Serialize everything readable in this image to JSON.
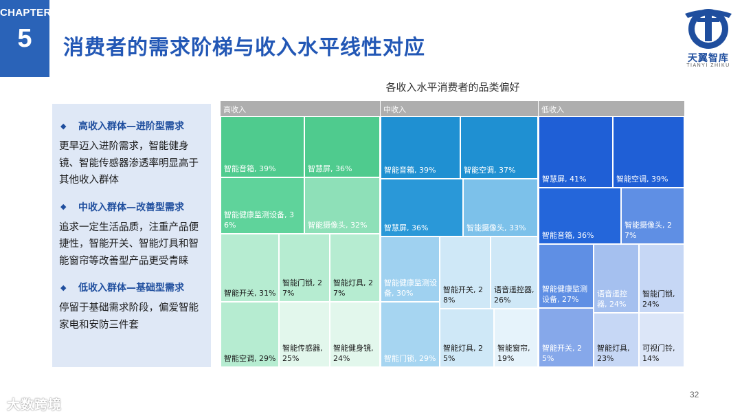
{
  "chapter": {
    "label": "CHAPTER",
    "number": "5"
  },
  "title": "消费者的需求阶梯与收入水平线性对应",
  "logo": {
    "name": "天翼智库",
    "sub": "TIANYI ZHIKU"
  },
  "sections": [
    {
      "heading": "高收入群体—进阶型需求",
      "body": "更早迈入进阶需求，智能健身镜、智能传感器渗透率明显高于其他收入群体"
    },
    {
      "heading": "中收入群体—改善型需求",
      "body": "追求一定生活品质，注重产品便捷性，智能开关、智能灯具和智能窗帘等改善型产品更受青睐"
    },
    {
      "heading": "低收入群体—基础型需求",
      "body": "停留于基础需求阶段，偏爱智能家电和安防三件套"
    }
  ],
  "chart_data": {
    "type": "treemap",
    "title": "各收入水平消费者的品类偏好",
    "groups": [
      {
        "name": "高收入",
        "items": [
          {
            "label": "智能音箱, 39%",
            "value": 39,
            "color": "#4fcb8e"
          },
          {
            "label": "智慧屏, 36%",
            "value": 36,
            "color": "#4fcb8e"
          },
          {
            "label": "智能健康监测设备, 36%",
            "value": 36,
            "color": "#5fd39b"
          },
          {
            "label": "智能摄像头, 32%",
            "value": 32,
            "color": "#8ee0b8"
          },
          {
            "label": "智能开关, 31%",
            "value": 31,
            "color": "#b6ecd1"
          },
          {
            "label": "智能门锁, 27%",
            "value": 27,
            "color": "#b6ecd1"
          },
          {
            "label": "智能灯具, 27%",
            "value": 27,
            "color": "#b6ecd1"
          },
          {
            "label": "智能空调, 29%",
            "value": 29,
            "color": "#b6ecd1"
          },
          {
            "label": "智能传感器, 25%",
            "value": 25,
            "color": "#e2f7ec"
          },
          {
            "label": "智能健身镜, 24%",
            "value": 24,
            "color": "#e2f7ec"
          }
        ]
      },
      {
        "name": "中收入",
        "items": [
          {
            "label": "智能音箱, 39%",
            "value": 39,
            "color": "#1f90d2"
          },
          {
            "label": "智能空调, 37%",
            "value": 37,
            "color": "#1f90d2"
          },
          {
            "label": "智慧屏, 36%",
            "value": 36,
            "color": "#2a98d8"
          },
          {
            "label": "智能摄像头, 33%",
            "value": 33,
            "color": "#7cc1ea"
          },
          {
            "label": "智能健康监测设备, 30%",
            "value": 30,
            "color": "#9fd1f0"
          },
          {
            "label": "智能开关, 28%",
            "value": 28,
            "color": "#cfe8f7"
          },
          {
            "label": "语音遥控器, 26%",
            "value": 26,
            "color": "#cfe8f7"
          },
          {
            "label": "智能门锁, 29%",
            "value": 29,
            "color": "#a6d5f1"
          },
          {
            "label": "智能灯具, 25%",
            "value": 25,
            "color": "#cfe8f7"
          },
          {
            "label": "智能窗帘, 19%",
            "value": 19,
            "color": "#e6f3fb"
          }
        ]
      },
      {
        "name": "低收入",
        "items": [
          {
            "label": "智慧屏, 41%",
            "value": 41,
            "color": "#1f5fd6"
          },
          {
            "label": "智能空调, 39%",
            "value": 39,
            "color": "#1f5fd6"
          },
          {
            "label": "智能音箱, 36%",
            "value": 36,
            "color": "#2466da"
          },
          {
            "label": "智能摄像头, 27%",
            "value": 27,
            "color": "#5f8fe4"
          },
          {
            "label": "智能健康监测设备, 27%",
            "value": 27,
            "color": "#5f8fe4"
          },
          {
            "label": "语音遥控器, 24%",
            "value": 24,
            "color": "#a5c0ef"
          },
          {
            "label": "智能门锁, 24%",
            "value": 24,
            "color": "#c6d7f5"
          },
          {
            "label": "智能开关, 25%",
            "value": 25,
            "color": "#86a8ea"
          },
          {
            "label": "智能灯具, 23%",
            "value": 23,
            "color": "#c6d7f5"
          },
          {
            "label": "可视门铃, 14%",
            "value": 14,
            "color": "#dce6f8"
          }
        ]
      }
    ]
  },
  "page_number": "32",
  "watermark": "大数跨境"
}
